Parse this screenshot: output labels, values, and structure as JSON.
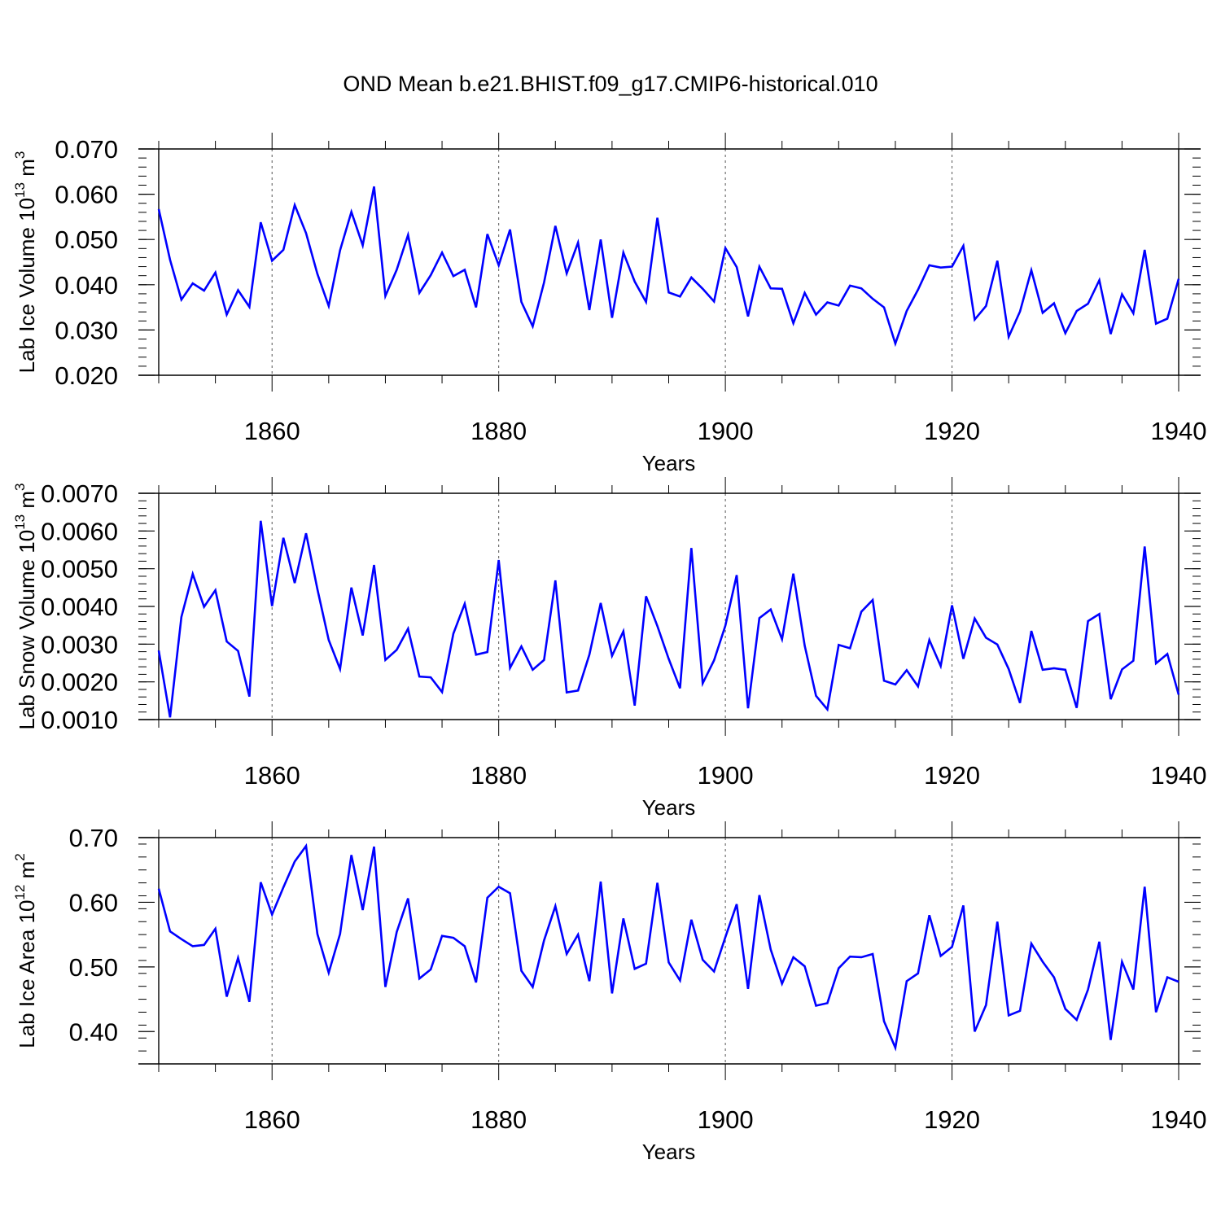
{
  "title": "OND Mean b.e21.BHIST.f09_g17.CMIP6-historical.010",
  "chart_data": [
    {
      "type": "line",
      "name": "lab-ice-volume",
      "title": "OND Mean b.e21.BHIST.f09_g17.CMIP6-historical.010",
      "xlabel": "Years",
      "ylabel_main": "Lab Ice Volume 10",
      "ylabel_exp": "13",
      "ylabel_unit": "m",
      "ylabel_unit_exp": "3",
      "xlim": [
        1850,
        1940
      ],
      "ylim": [
        0.02,
        0.07
      ],
      "xticks": [
        1860,
        1880,
        1900,
        1920,
        1940
      ],
      "xtick_labels": [
        "1860",
        "1880",
        "1900",
        "1920",
        "1940"
      ],
      "yticks": [
        0.02,
        0.03,
        0.04,
        0.05,
        0.06,
        0.07
      ],
      "ytick_labels": [
        "0.020",
        "0.030",
        "0.040",
        "0.050",
        "0.060",
        "0.070"
      ],
      "color": "#0000ff",
      "x_start": 1850,
      "values": [
        0.0567,
        0.0455,
        0.0367,
        0.0403,
        0.0387,
        0.0427,
        0.0334,
        0.0388,
        0.0351,
        0.0538,
        0.0453,
        0.0477,
        0.0576,
        0.0514,
        0.0424,
        0.0353,
        0.0476,
        0.0561,
        0.0487,
        0.0617,
        0.0375,
        0.0433,
        0.051,
        0.0382,
        0.0421,
        0.0471,
        0.0419,
        0.0433,
        0.035,
        0.0512,
        0.0443,
        0.0522,
        0.0362,
        0.0308,
        0.0405,
        0.053,
        0.0425,
        0.0493,
        0.0344,
        0.05,
        0.0327,
        0.0471,
        0.0407,
        0.0362,
        0.0548,
        0.0383,
        0.0374,
        0.0416,
        0.0391,
        0.0363,
        0.0481,
        0.0439,
        0.033,
        0.044,
        0.0392,
        0.0391,
        0.0315,
        0.0382,
        0.0334,
        0.0361,
        0.0354,
        0.0398,
        0.0392,
        0.0369,
        0.035,
        0.027,
        0.0342,
        0.0389,
        0.0443,
        0.0438,
        0.044,
        0.0486,
        0.0323,
        0.0353,
        0.0453,
        0.0285,
        0.0341,
        0.0432,
        0.0338,
        0.0359,
        0.0293,
        0.0342,
        0.0358,
        0.041,
        0.0291,
        0.0379,
        0.0337,
        0.0477,
        0.0314,
        0.0325,
        0.0413
      ]
    },
    {
      "type": "line",
      "name": "lab-snow-volume",
      "xlabel": "Years",
      "ylabel_main": "Lab Snow Volume 10",
      "ylabel_exp": "13",
      "ylabel_unit": "m",
      "ylabel_unit_exp": "3",
      "xlim": [
        1850,
        1940
      ],
      "ylim": [
        0.001,
        0.007
      ],
      "xticks": [
        1860,
        1880,
        1900,
        1920,
        1940
      ],
      "xtick_labels": [
        "1860",
        "1880",
        "1900",
        "1920",
        "1940"
      ],
      "yticks": [
        0.001,
        0.002,
        0.003,
        0.004,
        0.005,
        0.006,
        0.007
      ],
      "ytick_labels": [
        "0.0010",
        "0.0020",
        "0.0030",
        "0.0040",
        "0.0050",
        "0.0060",
        "0.0070"
      ],
      "color": "#0000ff",
      "x_start": 1850,
      "values": [
        0.00283,
        0.00106,
        0.00372,
        0.00486,
        0.00399,
        0.00443,
        0.00307,
        0.00282,
        0.00161,
        0.00627,
        0.00401,
        0.00582,
        0.00462,
        0.00594,
        0.00446,
        0.00311,
        0.00234,
        0.0045,
        0.00323,
        0.0051,
        0.00258,
        0.00285,
        0.00341,
        0.00214,
        0.00212,
        0.00173,
        0.00328,
        0.00407,
        0.00272,
        0.00279,
        0.00523,
        0.00237,
        0.00294,
        0.00232,
        0.00258,
        0.00469,
        0.00172,
        0.00177,
        0.00272,
        0.00409,
        0.00269,
        0.00334,
        0.00137,
        0.00427,
        0.00348,
        0.00261,
        0.00183,
        0.00555,
        0.00196,
        0.00257,
        0.00349,
        0.00483,
        0.0013,
        0.00369,
        0.00392,
        0.00313,
        0.00487,
        0.00296,
        0.00163,
        0.00127,
        0.00298,
        0.00289,
        0.00386,
        0.00417,
        0.00203,
        0.00193,
        0.00231,
        0.00188,
        0.00311,
        0.00242,
        0.00403,
        0.00261,
        0.00368,
        0.00317,
        0.00299,
        0.00234,
        0.00144,
        0.00335,
        0.00232,
        0.00236,
        0.00232,
        0.00131,
        0.00361,
        0.0038,
        0.00154,
        0.00233,
        0.00256,
        0.00559,
        0.00249,
        0.00274,
        0.00166
      ]
    },
    {
      "type": "line",
      "name": "lab-ice-area",
      "xlabel": "Years",
      "ylabel_main": "Lab Ice Area 10",
      "ylabel_exp": "12",
      "ylabel_unit": "m",
      "ylabel_unit_exp": "2",
      "xlim": [
        1850,
        1940
      ],
      "ylim": [
        0.35,
        0.7
      ],
      "xticks": [
        1860,
        1880,
        1900,
        1920,
        1940
      ],
      "xtick_labels": [
        "1860",
        "1880",
        "1900",
        "1920",
        "1940"
      ],
      "yticks": [
        0.4,
        0.5,
        0.6,
        0.7
      ],
      "ytick_labels": [
        "0.40",
        "0.50",
        "0.60",
        "0.70"
      ],
      "color": "#0000ff",
      "x_start": 1850,
      "values": [
        0.621,
        0.555,
        0.543,
        0.532,
        0.534,
        0.559,
        0.454,
        0.514,
        0.446,
        0.631,
        0.581,
        0.623,
        0.663,
        0.687,
        0.551,
        0.491,
        0.551,
        0.673,
        0.588,
        0.686,
        0.469,
        0.554,
        0.606,
        0.482,
        0.496,
        0.548,
        0.545,
        0.532,
        0.476,
        0.607,
        0.624,
        0.614,
        0.494,
        0.469,
        0.541,
        0.594,
        0.52,
        0.55,
        0.478,
        0.632,
        0.459,
        0.575,
        0.497,
        0.505,
        0.63,
        0.507,
        0.479,
        0.573,
        0.511,
        0.493,
        0.546,
        0.597,
        0.466,
        0.611,
        0.527,
        0.474,
        0.515,
        0.501,
        0.44,
        0.444,
        0.498,
        0.516,
        0.515,
        0.52,
        0.416,
        0.375,
        0.478,
        0.49,
        0.58,
        0.517,
        0.531,
        0.595,
        0.4,
        0.441,
        0.57,
        0.425,
        0.432,
        0.536,
        0.508,
        0.484,
        0.435,
        0.418,
        0.465,
        0.539,
        0.387,
        0.508,
        0.465,
        0.624,
        0.43,
        0.484,
        0.477
      ]
    }
  ]
}
